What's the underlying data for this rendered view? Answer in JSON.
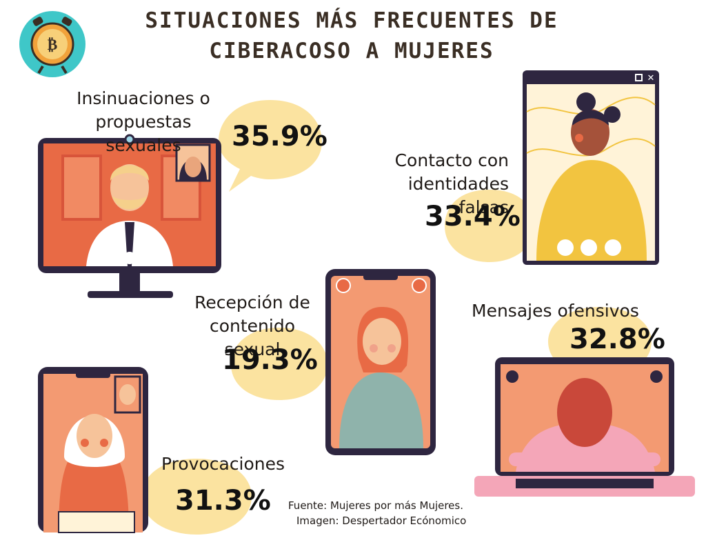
{
  "title_line1": "SITUACIONES MÁS FRECUENTES DE",
  "title_line2": "CIBERACOSO A MUJERES",
  "logo_icon": "bitcoin-clock-icon",
  "colors": {
    "accent_orange": "#e8593c",
    "bubble_yellow": "#fbe3a0",
    "dark_frame": "#2e2640",
    "yellow_shirt": "#f2c440",
    "pink_shirt": "#f4a6b8",
    "teal_shirt": "#8fb3ab"
  },
  "chart_data": {
    "type": "table",
    "categories": [
      "Insinuaciones o propuestas sexuales",
      "Contacto con identidades falsas",
      "Recepción de contenido sexual",
      "Mensajes ofensivos",
      "Provocaciones"
    ],
    "values": [
      35.9,
      33.4,
      19.3,
      32.8,
      31.3
    ],
    "items": [
      {
        "label_line1": "Insinuaciones o",
        "label_line2": "propuestas sexuales",
        "value_text": "35.9%"
      },
      {
        "label_line1": "Contacto con",
        "label_line2": "identidades falsas",
        "value_text": "33.4%"
      },
      {
        "label_line1": "Recepción de",
        "label_line2": "contenido sexual",
        "value_text": "19.3%"
      },
      {
        "label_line1": "Mensajes ofensivos",
        "label_line2": "",
        "value_text": "32.8%"
      },
      {
        "label_line1": "Provocaciones",
        "label_line2": "",
        "value_text": "31.3%"
      }
    ]
  },
  "source_line1": "Fuente:  Mujeres por más Mujeres.",
  "source_line2": "Imagen: Despertador Ecónomico"
}
